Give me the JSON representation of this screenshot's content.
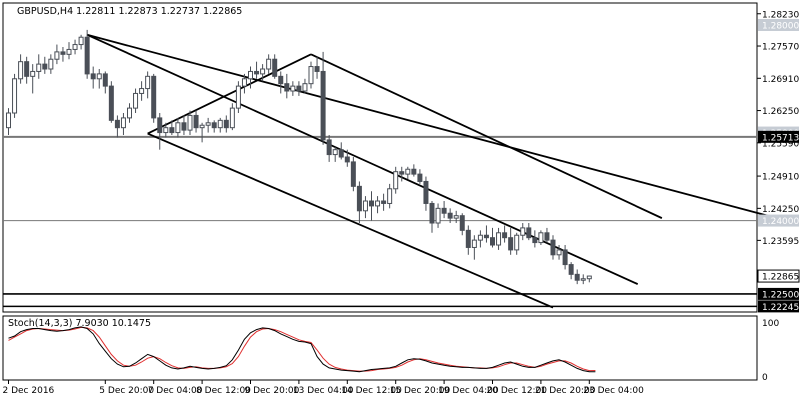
{
  "header": {
    "symbol_line": "GBPUSD,H4  1.22811 1.22873 1.22737 1.22865"
  },
  "chart_data": {
    "type": "candlestick",
    "symbol": "GBPUSD",
    "timeframe": "H4",
    "ohlc_readout": {
      "open": 1.22811,
      "high": 1.22873,
      "low": 1.22737,
      "close": 1.22865
    },
    "price_axis": {
      "range": [
        1.2213,
        1.2845
      ],
      "ticks": [
        "1.28230",
        "1.27570",
        "1.26910",
        "1.26250",
        "1.25590",
        "1.24910",
        "1.24250",
        "1.23595"
      ],
      "highlight_labels": [
        {
          "text": "1.28000",
          "value": 1.28,
          "style": "faded"
        },
        {
          "text": "1.25800",
          "value": 1.258,
          "style": "faded"
        },
        {
          "text": "1.24000",
          "value": 1.24,
          "style": "faded"
        },
        {
          "text": "1.25713",
          "value": 1.25713,
          "style": "dark"
        },
        {
          "text": "1.22865",
          "value": 1.22865,
          "style": "price"
        },
        {
          "text": "1.22500",
          "value": 1.225,
          "style": "dark"
        },
        {
          "text": "1.22245",
          "value": 1.22245,
          "style": "dark"
        }
      ]
    },
    "horizontal_levels": [
      {
        "value": 1.25713,
        "color": "#777777",
        "width": 2
      },
      {
        "value": 1.24,
        "color": "#777777",
        "width": 1
      },
      {
        "value": 1.225,
        "color": "#000000",
        "width": 1.6
      },
      {
        "value": 1.22245,
        "color": "#000000",
        "width": 1.6
      }
    ],
    "time_axis": {
      "labels": [
        "2 Dec 2016",
        "5 Dec 20:00",
        "7 Dec 04:00",
        "8 Dec 12:00",
        "9 Dec 20:00",
        "13 Dec 04:00",
        "14 Dec 12:00",
        "15 Dec 20:00",
        "19 Dec 04:00",
        "20 Dec 12:00",
        "21 Dec 20:00",
        "23 Dec 04:00"
      ],
      "label_bar_index": [
        0,
        16,
        24,
        32,
        40,
        48,
        56,
        64,
        72,
        80,
        88,
        96
      ]
    },
    "candles": [
      {
        "o": 1.259,
        "h": 1.263,
        "l": 1.2575,
        "c": 1.262
      },
      {
        "o": 1.262,
        "h": 1.27,
        "l": 1.261,
        "c": 1.269
      },
      {
        "o": 1.269,
        "h": 1.274,
        "l": 1.268,
        "c": 1.2725
      },
      {
        "o": 1.2725,
        "h": 1.2735,
        "l": 1.268,
        "c": 1.2695
      },
      {
        "o": 1.2695,
        "h": 1.272,
        "l": 1.266,
        "c": 1.2705
      },
      {
        "o": 1.2705,
        "h": 1.274,
        "l": 1.269,
        "c": 1.272
      },
      {
        "o": 1.272,
        "h": 1.2735,
        "l": 1.27,
        "c": 1.271
      },
      {
        "o": 1.271,
        "h": 1.274,
        "l": 1.27,
        "c": 1.273
      },
      {
        "o": 1.273,
        "h": 1.276,
        "l": 1.272,
        "c": 1.2745
      },
      {
        "o": 1.2745,
        "h": 1.2755,
        "l": 1.2725,
        "c": 1.274
      },
      {
        "o": 1.274,
        "h": 1.2765,
        "l": 1.273,
        "c": 1.275
      },
      {
        "o": 1.275,
        "h": 1.277,
        "l": 1.274,
        "c": 1.276
      },
      {
        "o": 1.276,
        "h": 1.278,
        "l": 1.275,
        "c": 1.2775
      },
      {
        "o": 1.2775,
        "h": 1.279,
        "l": 1.269,
        "c": 1.27
      },
      {
        "o": 1.27,
        "h": 1.2715,
        "l": 1.267,
        "c": 1.269
      },
      {
        "o": 1.269,
        "h": 1.271,
        "l": 1.267,
        "c": 1.27
      },
      {
        "o": 1.27,
        "h": 1.2705,
        "l": 1.266,
        "c": 1.2675
      },
      {
        "o": 1.2675,
        "h": 1.2685,
        "l": 1.26,
        "c": 1.2605
      },
      {
        "o": 1.2605,
        "h": 1.2615,
        "l": 1.257,
        "c": 1.259
      },
      {
        "o": 1.259,
        "h": 1.262,
        "l": 1.2575,
        "c": 1.261
      },
      {
        "o": 1.261,
        "h": 1.264,
        "l": 1.26,
        "c": 1.263
      },
      {
        "o": 1.263,
        "h": 1.267,
        "l": 1.262,
        "c": 1.266
      },
      {
        "o": 1.266,
        "h": 1.2685,
        "l": 1.2645,
        "c": 1.267
      },
      {
        "o": 1.267,
        "h": 1.2705,
        "l": 1.265,
        "c": 1.2695
      },
      {
        "o": 1.2695,
        "h": 1.27,
        "l": 1.26,
        "c": 1.261
      },
      {
        "o": 1.261,
        "h": 1.262,
        "l": 1.2545,
        "c": 1.258
      },
      {
        "o": 1.258,
        "h": 1.26,
        "l": 1.257,
        "c": 1.259
      },
      {
        "o": 1.259,
        "h": 1.2605,
        "l": 1.2575,
        "c": 1.258
      },
      {
        "o": 1.258,
        "h": 1.261,
        "l": 1.257,
        "c": 1.26
      },
      {
        "o": 1.26,
        "h": 1.2615,
        "l": 1.2575,
        "c": 1.2585
      },
      {
        "o": 1.2585,
        "h": 1.2625,
        "l": 1.2575,
        "c": 1.2615
      },
      {
        "o": 1.2615,
        "h": 1.2625,
        "l": 1.258,
        "c": 1.259
      },
      {
        "o": 1.259,
        "h": 1.26,
        "l": 1.256,
        "c": 1.2595
      },
      {
        "o": 1.2595,
        "h": 1.261,
        "l": 1.258,
        "c": 1.26
      },
      {
        "o": 1.26,
        "h": 1.2605,
        "l": 1.258,
        "c": 1.259
      },
      {
        "o": 1.259,
        "h": 1.261,
        "l": 1.258,
        "c": 1.2605
      },
      {
        "o": 1.2605,
        "h": 1.2615,
        "l": 1.258,
        "c": 1.259
      },
      {
        "o": 1.259,
        "h": 1.264,
        "l": 1.2585,
        "c": 1.263
      },
      {
        "o": 1.263,
        "h": 1.2685,
        "l": 1.262,
        "c": 1.2675
      },
      {
        "o": 1.2675,
        "h": 1.27,
        "l": 1.266,
        "c": 1.269
      },
      {
        "o": 1.269,
        "h": 1.2715,
        "l": 1.267,
        "c": 1.2705
      },
      {
        "o": 1.2705,
        "h": 1.2725,
        "l": 1.269,
        "c": 1.27
      },
      {
        "o": 1.27,
        "h": 1.272,
        "l": 1.2685,
        "c": 1.271
      },
      {
        "o": 1.271,
        "h": 1.274,
        "l": 1.27,
        "c": 1.273
      },
      {
        "o": 1.273,
        "h": 1.274,
        "l": 1.269,
        "c": 1.2695
      },
      {
        "o": 1.2695,
        "h": 1.2705,
        "l": 1.266,
        "c": 1.268
      },
      {
        "o": 1.268,
        "h": 1.27,
        "l": 1.265,
        "c": 1.2665
      },
      {
        "o": 1.2665,
        "h": 1.2685,
        "l": 1.2655,
        "c": 1.2675
      },
      {
        "o": 1.2675,
        "h": 1.2685,
        "l": 1.2655,
        "c": 1.2665
      },
      {
        "o": 1.2665,
        "h": 1.269,
        "l": 1.266,
        "c": 1.268
      },
      {
        "o": 1.268,
        "h": 1.2725,
        "l": 1.267,
        "c": 1.2715
      },
      {
        "o": 1.2715,
        "h": 1.2735,
        "l": 1.269,
        "c": 1.2705
      },
      {
        "o": 1.2705,
        "h": 1.2745,
        "l": 1.2555,
        "c": 1.2565
      },
      {
        "o": 1.2565,
        "h": 1.2575,
        "l": 1.252,
        "c": 1.2535
      },
      {
        "o": 1.2535,
        "h": 1.255,
        "l": 1.252,
        "c": 1.2545
      },
      {
        "o": 1.2545,
        "h": 1.256,
        "l": 1.2525,
        "c": 1.253
      },
      {
        "o": 1.253,
        "h": 1.2545,
        "l": 1.251,
        "c": 1.252
      },
      {
        "o": 1.252,
        "h": 1.253,
        "l": 1.246,
        "c": 1.247
      },
      {
        "o": 1.247,
        "h": 1.248,
        "l": 1.2395,
        "c": 1.242
      },
      {
        "o": 1.242,
        "h": 1.245,
        "l": 1.2405,
        "c": 1.244
      },
      {
        "o": 1.244,
        "h": 1.246,
        "l": 1.24,
        "c": 1.243
      },
      {
        "o": 1.243,
        "h": 1.245,
        "l": 1.2415,
        "c": 1.244
      },
      {
        "o": 1.244,
        "h": 1.2455,
        "l": 1.242,
        "c": 1.2435
      },
      {
        "o": 1.2435,
        "h": 1.2475,
        "l": 1.2425,
        "c": 1.2465
      },
      {
        "o": 1.2465,
        "h": 1.251,
        "l": 1.2455,
        "c": 1.25
      },
      {
        "o": 1.25,
        "h": 1.251,
        "l": 1.248,
        "c": 1.2495
      },
      {
        "o": 1.2495,
        "h": 1.251,
        "l": 1.2485,
        "c": 1.2505
      },
      {
        "o": 1.2505,
        "h": 1.2515,
        "l": 1.249,
        "c": 1.2495
      },
      {
        "o": 1.2495,
        "h": 1.2505,
        "l": 1.2475,
        "c": 1.248
      },
      {
        "o": 1.248,
        "h": 1.249,
        "l": 1.242,
        "c": 1.2435
      },
      {
        "o": 1.2435,
        "h": 1.244,
        "l": 1.2375,
        "c": 1.2395
      },
      {
        "o": 1.2395,
        "h": 1.2435,
        "l": 1.2385,
        "c": 1.2425
      },
      {
        "o": 1.2425,
        "h": 1.244,
        "l": 1.2405,
        "c": 1.2415
      },
      {
        "o": 1.2415,
        "h": 1.2425,
        "l": 1.2395,
        "c": 1.2405
      },
      {
        "o": 1.2405,
        "h": 1.242,
        "l": 1.2395,
        "c": 1.241
      },
      {
        "o": 1.241,
        "h": 1.2415,
        "l": 1.237,
        "c": 1.238
      },
      {
        "o": 1.238,
        "h": 1.239,
        "l": 1.233,
        "c": 1.2345
      },
      {
        "o": 1.2345,
        "h": 1.237,
        "l": 1.232,
        "c": 1.236
      },
      {
        "o": 1.236,
        "h": 1.238,
        "l": 1.2345,
        "c": 1.237
      },
      {
        "o": 1.237,
        "h": 1.239,
        "l": 1.2355,
        "c": 1.2365
      },
      {
        "o": 1.2365,
        "h": 1.2385,
        "l": 1.2345,
        "c": 1.235
      },
      {
        "o": 1.235,
        "h": 1.2385,
        "l": 1.234,
        "c": 1.2375
      },
      {
        "o": 1.2375,
        "h": 1.239,
        "l": 1.2355,
        "c": 1.2365
      },
      {
        "o": 1.2365,
        "h": 1.2385,
        "l": 1.233,
        "c": 1.234
      },
      {
        "o": 1.234,
        "h": 1.2375,
        "l": 1.233,
        "c": 1.237
      },
      {
        "o": 1.237,
        "h": 1.2395,
        "l": 1.236,
        "c": 1.2385
      },
      {
        "o": 1.2385,
        "h": 1.2395,
        "l": 1.236,
        "c": 1.2365
      },
      {
        "o": 1.2365,
        "h": 1.238,
        "l": 1.2345,
        "c": 1.2355
      },
      {
        "o": 1.2355,
        "h": 1.238,
        "l": 1.235,
        "c": 1.2375
      },
      {
        "o": 1.2375,
        "h": 1.2385,
        "l": 1.2355,
        "c": 1.236
      },
      {
        "o": 1.236,
        "h": 1.237,
        "l": 1.232,
        "c": 1.233
      },
      {
        "o": 1.233,
        "h": 1.235,
        "l": 1.232,
        "c": 1.234
      },
      {
        "o": 1.234,
        "h": 1.235,
        "l": 1.23,
        "c": 1.231
      },
      {
        "o": 1.231,
        "h": 1.2315,
        "l": 1.228,
        "c": 1.229
      },
      {
        "o": 1.229,
        "h": 1.23,
        "l": 1.227,
        "c": 1.2278
      },
      {
        "o": 1.2278,
        "h": 1.229,
        "l": 1.227,
        "c": 1.2281
      },
      {
        "o": 1.22811,
        "h": 1.22873,
        "l": 1.22737,
        "c": 1.22865
      }
    ],
    "trendlines": [
      {
        "name": "upper-channel-line",
        "from": {
          "bar": 13,
          "price": 1.278
        },
        "to": {
          "bar": 127,
          "price": 1.2405
        }
      },
      {
        "name": "mid-channel-line",
        "from": {
          "bar": 13,
          "price": 1.278
        },
        "to": {
          "bar": 104,
          "price": 1.227
        }
      },
      {
        "name": "lower-channel-line",
        "from": {
          "bar": 23,
          "price": 1.2578
        },
        "to": {
          "bar": 90,
          "price": 1.2222
        }
      },
      {
        "name": "upper-channel-line-2",
        "from": {
          "bar": 50,
          "price": 1.274
        },
        "to": {
          "bar": 108,
          "price": 1.2405
        }
      },
      {
        "name": "rising-line",
        "from": {
          "bar": 23,
          "price": 1.2578
        },
        "to": {
          "bar": 50,
          "price": 1.274
        }
      }
    ],
    "indicator": {
      "name": "Stoch(14,3,3)",
      "label": "Stoch(14,3,3) 7.9030 10.1475",
      "values": [
        7.903,
        10.1475
      ],
      "range": [
        0,
        100
      ],
      "axis_labels": [
        "100",
        "0"
      ],
      "main": [
        70,
        74,
        82,
        86,
        88,
        88,
        86,
        84,
        83,
        84,
        86,
        89,
        91,
        88,
        78,
        60,
        46,
        32,
        22,
        17,
        18,
        24,
        32,
        40,
        36,
        28,
        20,
        15,
        13,
        15,
        18,
        16,
        14,
        13,
        14,
        16,
        19,
        30,
        48,
        68,
        80,
        86,
        89,
        88,
        84,
        78,
        73,
        68,
        64,
        63,
        60,
        36,
        22,
        15,
        13,
        11,
        10,
        9,
        8,
        10,
        12,
        13,
        14,
        15,
        18,
        24,
        30,
        32,
        31,
        28,
        24,
        22,
        20,
        18,
        17,
        16,
        16,
        15,
        14,
        14,
        16,
        20,
        24,
        26,
        22,
        18,
        16,
        16,
        20,
        24,
        28,
        30,
        26,
        20,
        14,
        10,
        8,
        7.9
      ],
      "signal": [
        66,
        72,
        78,
        84,
        87,
        88,
        87,
        86,
        85,
        84,
        85,
        87,
        90,
        89,
        84,
        72,
        56,
        40,
        28,
        20,
        18,
        20,
        26,
        33,
        36,
        32,
        25,
        19,
        15,
        14,
        16,
        17,
        15,
        14,
        14,
        15,
        17,
        23,
        36,
        55,
        72,
        82,
        87,
        88,
        86,
        82,
        77,
        72,
        67,
        64,
        62,
        48,
        33,
        22,
        16,
        13,
        11,
        10,
        9,
        9,
        10,
        12,
        13,
        14,
        16,
        20,
        26,
        30,
        32,
        30,
        27,
        24,
        22,
        20,
        18,
        17,
        16,
        15,
        15,
        14,
        15,
        17,
        21,
        24,
        24,
        21,
        18,
        16,
        18,
        22,
        25,
        28,
        28,
        24,
        18,
        13,
        10,
        10.1
      ]
    }
  }
}
